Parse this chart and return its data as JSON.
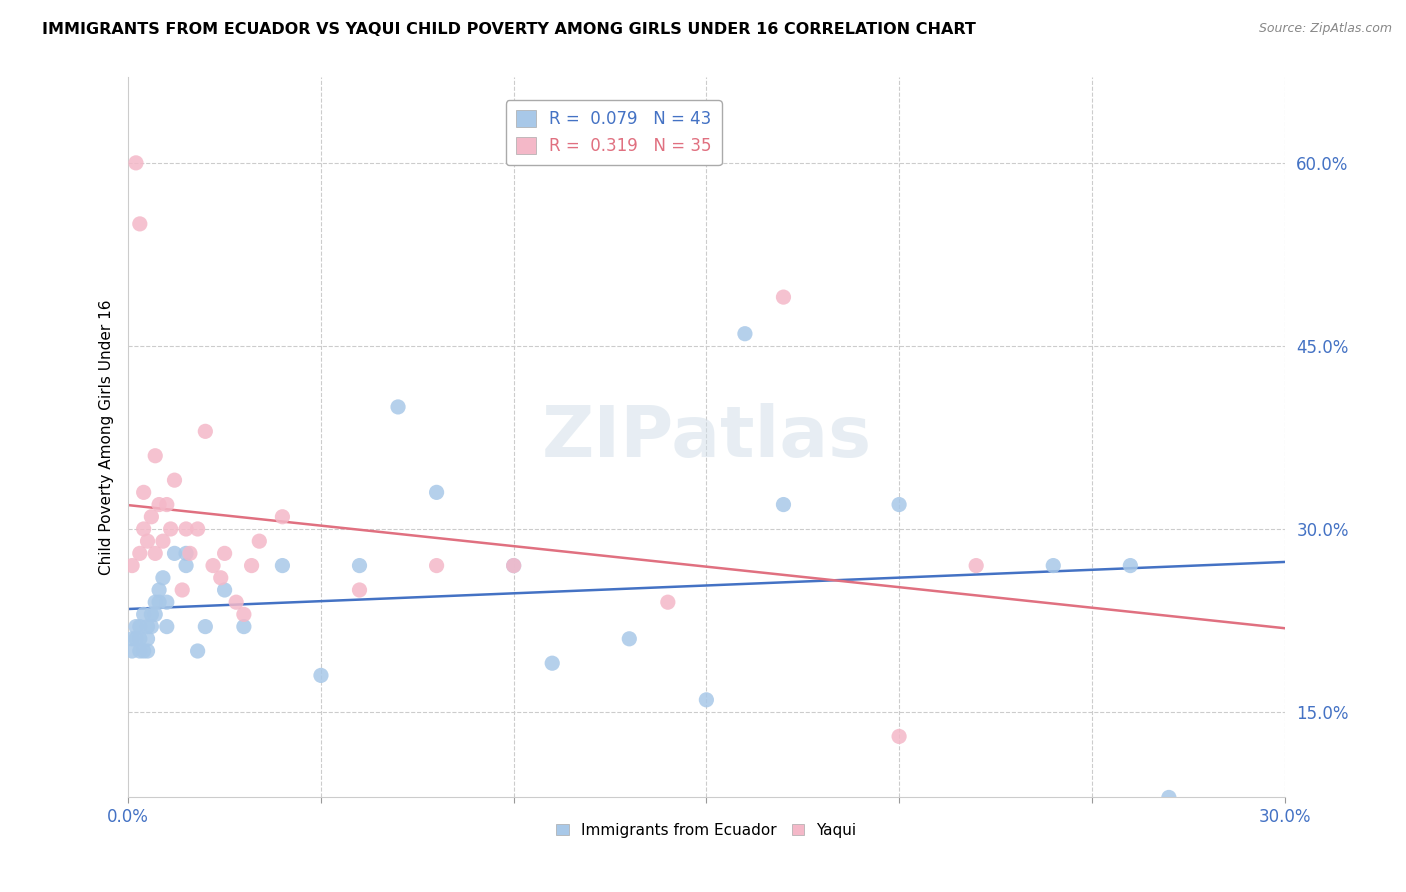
{
  "title": "IMMIGRANTS FROM ECUADOR VS YAQUI CHILD POVERTY AMONG GIRLS UNDER 16 CORRELATION CHART",
  "source": "Source: ZipAtlas.com",
  "xlabel_blue": "Immigrants from Ecuador",
  "xlabel_pink": "Yaqui",
  "ylabel": "Child Poverty Among Girls Under 16",
  "blue_R": 0.079,
  "blue_N": 43,
  "pink_R": 0.319,
  "pink_N": 35,
  "blue_color": "#a8c8e8",
  "pink_color": "#f4b8c8",
  "blue_line_color": "#4472c4",
  "pink_line_color": "#e07080",
  "legend_text_color": "#4472c4",
  "xlim": [
    0.0,
    0.3
  ],
  "ylim": [
    0.08,
    0.67
  ],
  "xticks": [
    0.0,
    0.05,
    0.1,
    0.15,
    0.2,
    0.25,
    0.3
  ],
  "yticks": [
    0.15,
    0.3,
    0.45,
    0.6
  ],
  "ytick_labels": [
    "15.0%",
    "30.0%",
    "45.0%",
    "60.0%"
  ],
  "xtick_labels": [
    "0.0%",
    "",
    "",
    "",
    "",
    "",
    "30.0%"
  ],
  "watermark": "ZIPatlas",
  "blue_x": [
    0.001,
    0.001,
    0.002,
    0.002,
    0.003,
    0.003,
    0.003,
    0.004,
    0.004,
    0.005,
    0.005,
    0.005,
    0.006,
    0.006,
    0.007,
    0.007,
    0.008,
    0.008,
    0.009,
    0.01,
    0.01,
    0.012,
    0.015,
    0.015,
    0.018,
    0.02,
    0.025,
    0.03,
    0.04,
    0.05,
    0.06,
    0.07,
    0.08,
    0.1,
    0.11,
    0.13,
    0.15,
    0.16,
    0.17,
    0.2,
    0.24,
    0.26,
    0.27
  ],
  "blue_y": [
    0.2,
    0.21,
    0.21,
    0.22,
    0.2,
    0.21,
    0.22,
    0.2,
    0.23,
    0.2,
    0.21,
    0.22,
    0.22,
    0.23,
    0.24,
    0.23,
    0.24,
    0.25,
    0.26,
    0.22,
    0.24,
    0.28,
    0.27,
    0.28,
    0.2,
    0.22,
    0.25,
    0.22,
    0.27,
    0.18,
    0.27,
    0.4,
    0.33,
    0.27,
    0.19,
    0.21,
    0.16,
    0.46,
    0.32,
    0.32,
    0.27,
    0.27,
    0.08
  ],
  "pink_x": [
    0.001,
    0.002,
    0.003,
    0.003,
    0.004,
    0.004,
    0.005,
    0.006,
    0.007,
    0.007,
    0.008,
    0.009,
    0.01,
    0.011,
    0.012,
    0.014,
    0.015,
    0.016,
    0.018,
    0.02,
    0.022,
    0.024,
    0.025,
    0.028,
    0.03,
    0.032,
    0.034,
    0.04,
    0.06,
    0.08,
    0.1,
    0.14,
    0.17,
    0.2,
    0.22
  ],
  "pink_y": [
    0.27,
    0.6,
    0.28,
    0.55,
    0.3,
    0.33,
    0.29,
    0.31,
    0.28,
    0.36,
    0.32,
    0.29,
    0.32,
    0.3,
    0.34,
    0.25,
    0.3,
    0.28,
    0.3,
    0.38,
    0.27,
    0.26,
    0.28,
    0.24,
    0.23,
    0.27,
    0.29,
    0.31,
    0.25,
    0.27,
    0.27,
    0.24,
    0.49,
    0.13,
    0.27
  ]
}
